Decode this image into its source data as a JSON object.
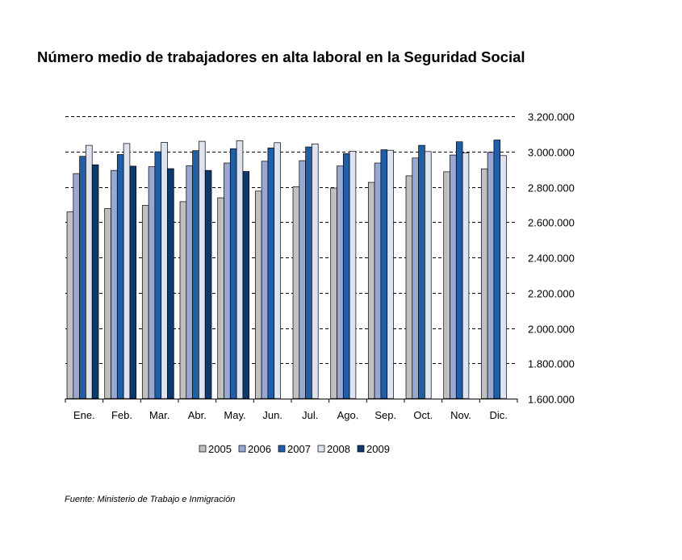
{
  "title": "Número medio de trabajadores en alta laboral en la Seguridad Social",
  "source": "Fuente: Ministerio de Trabajo e Inmigración",
  "colors": {
    "2005": "#c0c0c0",
    "2006": "#99a8d3",
    "2007": "#1f5fa8",
    "2008": "#dde3f1",
    "2009": "#0d3a6c"
  },
  "chart_data": {
    "type": "bar",
    "title": "Número medio de trabajadores en alta laboral en la Seguridad Social",
    "xlabel": "",
    "ylabel": "",
    "ylim": [
      1600000,
      3200000
    ],
    "yticks": [
      1600000,
      1800000,
      2000000,
      2200000,
      2400000,
      2600000,
      2800000,
      3000000,
      3200000
    ],
    "ytick_labels": [
      "1.600.000",
      "1.800.000",
      "2.000.000",
      "2.200.000",
      "2.400.000",
      "2.600.000",
      "2.800.000",
      "3.000.000",
      "3.200.000"
    ],
    "y_axis_side": "right",
    "grid": "dashed horizontal",
    "legend_position": "bottom",
    "categories": [
      "Ene.",
      "Feb.",
      "Mar.",
      "Abr.",
      "May.",
      "Jun.",
      "Jul.",
      "Ago.",
      "Sep.",
      "Oct.",
      "Nov.",
      "Dic."
    ],
    "series": [
      {
        "name": "2005",
        "values": [
          2658000,
          2677000,
          2695000,
          2716000,
          2738000,
          2776000,
          2800000,
          2793000,
          2825000,
          2862000,
          2885000,
          2902000
        ]
      },
      {
        "name": "2006",
        "values": [
          2875000,
          2893000,
          2914000,
          2919000,
          2935000,
          2945000,
          2948000,
          2918000,
          2935000,
          2963000,
          2980000,
          2995000
        ]
      },
      {
        "name": "2007",
        "values": [
          2973000,
          2983000,
          2999000,
          3005000,
          3016000,
          3020000,
          3026000,
          2988000,
          3010000,
          3035000,
          3055000,
          3065000
        ]
      },
      {
        "name": "2008",
        "values": [
          3035000,
          3045000,
          3052000,
          3058000,
          3061000,
          3050000,
          3043000,
          3002000,
          3007000,
          3000000,
          2992000,
          2977000
        ]
      },
      {
        "name": "2009",
        "values": [
          2925000,
          2917000,
          2903000,
          2893000,
          2887000,
          null,
          null,
          null,
          null,
          null,
          null,
          null
        ]
      }
    ]
  }
}
